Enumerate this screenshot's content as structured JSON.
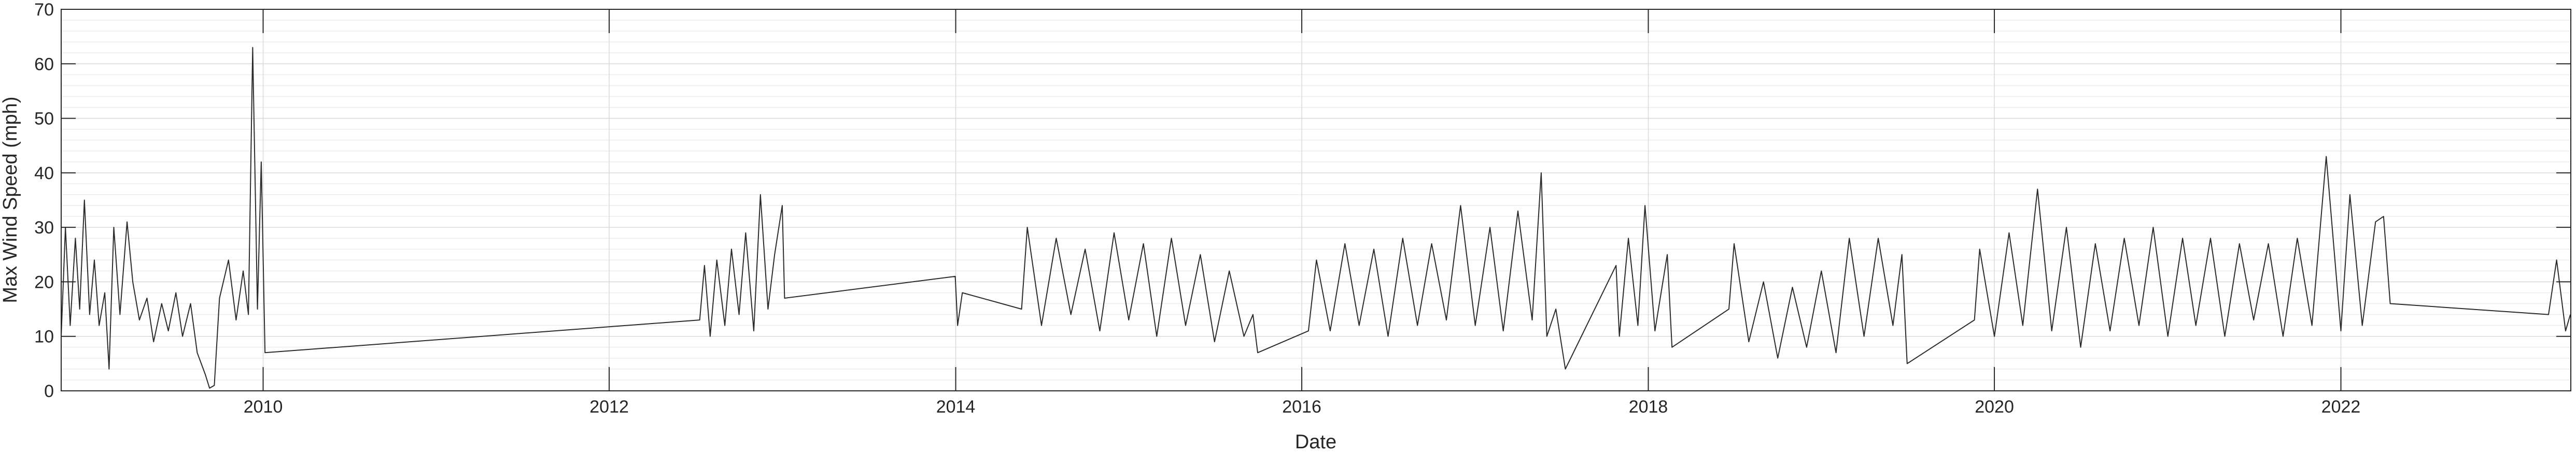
{
  "chart_data": {
    "type": "line",
    "title": "",
    "xlabel": "Date",
    "ylabel": "Max Wind Speed (mph)",
    "xlim": [
      "2008-11-01",
      "2023-05-01"
    ],
    "ylim": [
      0,
      70
    ],
    "x_ticks": [
      "2010",
      "2012",
      "2014",
      "2016",
      "2018",
      "2020",
      "2022"
    ],
    "y_ticks": [
      "0",
      "10",
      "20",
      "30",
      "40",
      "50",
      "60",
      "70"
    ],
    "grid": true,
    "minor_grid_y": true,
    "line_color": "#2b2b2b",
    "series": [
      {
        "points": [
          [
            "2008-11-01",
            10
          ],
          [
            "2008-11-10",
            30
          ],
          [
            "2008-11-20",
            12
          ],
          [
            "2008-12-01",
            28
          ],
          [
            "2008-12-10",
            15
          ],
          [
            "2008-12-20",
            35
          ],
          [
            "2008-12-31",
            14
          ],
          [
            "2009-01-10",
            24
          ],
          [
            "2009-01-20",
            12
          ],
          [
            "2009-02-01",
            18
          ],
          [
            "2009-02-10",
            4
          ],
          [
            "2009-02-20",
            30
          ],
          [
            "2009-03-05",
            14
          ],
          [
            "2009-03-20",
            31
          ],
          [
            "2009-04-01",
            20
          ],
          [
            "2009-04-15",
            13
          ],
          [
            "2009-05-01",
            17
          ],
          [
            "2009-05-15",
            9
          ],
          [
            "2009-06-01",
            16
          ],
          [
            "2009-06-15",
            11
          ],
          [
            "2009-07-01",
            18
          ],
          [
            "2009-07-15",
            10
          ],
          [
            "2009-08-01",
            16
          ],
          [
            "2009-08-15",
            7
          ],
          [
            "2009-09-01",
            3
          ],
          [
            "2009-09-10",
            0.5
          ],
          [
            "2009-09-20",
            1
          ],
          [
            "2009-10-01",
            17
          ],
          [
            "2009-10-20",
            24
          ],
          [
            "2009-11-05",
            13
          ],
          [
            "2009-11-20",
            22
          ],
          [
            "2009-12-01",
            14
          ],
          [
            "2009-12-10",
            63
          ],
          [
            "2009-12-20",
            15
          ],
          [
            "2009-12-28",
            42
          ],
          [
            "2010-01-05",
            7
          ],
          [
            "2012-07-10",
            13
          ],
          [
            "2012-07-20",
            23
          ],
          [
            "2012-08-01",
            10
          ],
          [
            "2012-08-15",
            24
          ],
          [
            "2012-09-01",
            12
          ],
          [
            "2012-09-15",
            26
          ],
          [
            "2012-10-01",
            14
          ],
          [
            "2012-10-15",
            29
          ],
          [
            "2012-11-01",
            11
          ],
          [
            "2012-11-15",
            36
          ],
          [
            "2012-12-01",
            15
          ],
          [
            "2012-12-15",
            25
          ],
          [
            "2012-12-31",
            34
          ],
          [
            "2013-01-05",
            17
          ],
          [
            "2013-12-31",
            21
          ],
          [
            "2014-01-05",
            12
          ],
          [
            "2014-01-15",
            18
          ],
          [
            "2014-05-20",
            15
          ],
          [
            "2014-06-01",
            30
          ],
          [
            "2014-07-01",
            12
          ],
          [
            "2014-08-01",
            28
          ],
          [
            "2014-09-01",
            14
          ],
          [
            "2014-10-01",
            26
          ],
          [
            "2014-11-01",
            11
          ],
          [
            "2014-12-01",
            29
          ],
          [
            "2015-01-01",
            13
          ],
          [
            "2015-02-01",
            27
          ],
          [
            "2015-03-01",
            10
          ],
          [
            "2015-04-01",
            28
          ],
          [
            "2015-05-01",
            12
          ],
          [
            "2015-06-01",
            25
          ],
          [
            "2015-07-01",
            9
          ],
          [
            "2015-08-01",
            22
          ],
          [
            "2015-09-01",
            10
          ],
          [
            "2015-09-20",
            14
          ],
          [
            "2015-09-30",
            7
          ],
          [
            "2016-01-15",
            11
          ],
          [
            "2016-02-01",
            24
          ],
          [
            "2016-03-01",
            11
          ],
          [
            "2016-04-01",
            27
          ],
          [
            "2016-05-01",
            12
          ],
          [
            "2016-06-01",
            26
          ],
          [
            "2016-07-01",
            10
          ],
          [
            "2016-08-01",
            28
          ],
          [
            "2016-09-01",
            12
          ],
          [
            "2016-10-01",
            27
          ],
          [
            "2016-11-01",
            13
          ],
          [
            "2016-12-01",
            34
          ],
          [
            "2017-01-01",
            12
          ],
          [
            "2017-02-01",
            30
          ],
          [
            "2017-03-01",
            11
          ],
          [
            "2017-04-01",
            33
          ],
          [
            "2017-05-01",
            13
          ],
          [
            "2017-05-20",
            40
          ],
          [
            "2017-06-01",
            10
          ],
          [
            "2017-06-20",
            15
          ],
          [
            "2017-07-10",
            4
          ],
          [
            "2017-10-25",
            23
          ],
          [
            "2017-11-01",
            10
          ],
          [
            "2017-11-20",
            28
          ],
          [
            "2017-12-10",
            12
          ],
          [
            "2017-12-25",
            34
          ],
          [
            "2018-01-15",
            11
          ],
          [
            "2018-02-10",
            25
          ],
          [
            "2018-02-20",
            8
          ],
          [
            "2018-06-20",
            15
          ],
          [
            "2018-07-01",
            27
          ],
          [
            "2018-08-01",
            9
          ],
          [
            "2018-09-01",
            20
          ],
          [
            "2018-10-01",
            6
          ],
          [
            "2018-11-01",
            19
          ],
          [
            "2018-12-01",
            8
          ],
          [
            "2019-01-01",
            22
          ],
          [
            "2019-02-01",
            7
          ],
          [
            "2019-03-01",
            28
          ],
          [
            "2019-04-01",
            10
          ],
          [
            "2019-05-01",
            28
          ],
          [
            "2019-06-01",
            12
          ],
          [
            "2019-06-20",
            25
          ],
          [
            "2019-07-01",
            5
          ],
          [
            "2019-11-20",
            13
          ],
          [
            "2019-12-01",
            26
          ],
          [
            "2020-01-01",
            10
          ],
          [
            "2020-02-01",
            29
          ],
          [
            "2020-03-01",
            12
          ],
          [
            "2020-04-01",
            37
          ],
          [
            "2020-05-01",
            11
          ],
          [
            "2020-06-01",
            30
          ],
          [
            "2020-07-01",
            8
          ],
          [
            "2020-08-01",
            27
          ],
          [
            "2020-09-01",
            11
          ],
          [
            "2020-10-01",
            28
          ],
          [
            "2020-11-01",
            12
          ],
          [
            "2020-12-01",
            30
          ],
          [
            "2021-01-01",
            10
          ],
          [
            "2021-02-01",
            28
          ],
          [
            "2021-03-01",
            12
          ],
          [
            "2021-04-01",
            28
          ],
          [
            "2021-05-01",
            10
          ],
          [
            "2021-06-01",
            27
          ],
          [
            "2021-07-01",
            13
          ],
          [
            "2021-08-01",
            27
          ],
          [
            "2021-09-01",
            10
          ],
          [
            "2021-10-01",
            28
          ],
          [
            "2021-11-01",
            12
          ],
          [
            "2021-12-01",
            43
          ],
          [
            "2022-01-01",
            11
          ],
          [
            "2022-01-20",
            36
          ],
          [
            "2022-02-15",
            12
          ],
          [
            "2022-03-15",
            31
          ],
          [
            "2022-04-01",
            32
          ],
          [
            "2022-04-15",
            16
          ],
          [
            "2023-03-15",
            14
          ],
          [
            "2023-04-01",
            24
          ],
          [
            "2023-04-20",
            11
          ],
          [
            "2023-04-30",
            14
          ]
        ]
      }
    ]
  }
}
